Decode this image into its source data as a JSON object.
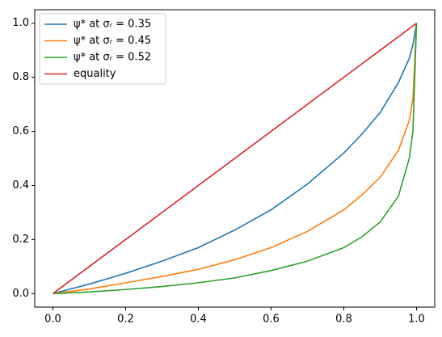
{
  "chart_data": {
    "type": "line",
    "x": [
      0,
      0.1,
      0.2,
      0.3,
      0.4,
      0.5,
      0.6,
      0.7,
      0.8,
      0.85,
      0.9,
      0.95,
      0.98,
      0.99,
      1.0
    ],
    "series": [
      {
        "name": "ψ* at σᵣ = 0.35",
        "color": "#1f77b4",
        "values": [
          0,
          0.035,
          0.075,
          0.12,
          0.17,
          0.235,
          0.31,
          0.405,
          0.52,
          0.59,
          0.67,
          0.78,
          0.87,
          0.92,
          1.0
        ]
      },
      {
        "name": "ψ* at σᵣ = 0.45",
        "color": "#ff7f0e",
        "values": [
          0,
          0.017,
          0.04,
          0.063,
          0.09,
          0.125,
          0.17,
          0.23,
          0.31,
          0.365,
          0.43,
          0.53,
          0.64,
          0.72,
          1.0
        ]
      },
      {
        "name": "ψ* at σᵣ = 0.52",
        "color": "#2ca02c",
        "values": [
          0,
          0.006,
          0.015,
          0.026,
          0.04,
          0.058,
          0.085,
          0.12,
          0.17,
          0.21,
          0.265,
          0.36,
          0.5,
          0.6,
          1.0
        ]
      },
      {
        "name": "equality",
        "color": "#d62728",
        "values": [
          0,
          0.1,
          0.2,
          0.3,
          0.4,
          0.5,
          0.6,
          0.7,
          0.8,
          0.85,
          0.9,
          0.95,
          0.98,
          0.99,
          1.0
        ]
      }
    ],
    "xlim": [
      -0.05,
      1.05
    ],
    "ylim": [
      -0.05,
      1.05
    ],
    "xticks": [
      {
        "value": 0,
        "label": "0.0"
      },
      0.2,
      0.4,
      0.6,
      0.8,
      {
        "value": 1,
        "label": "1.0"
      }
    ],
    "yticks": [
      {
        "value": 0,
        "label": "0.0"
      },
      0.2,
      0.4,
      0.6,
      0.8,
      {
        "value": 1,
        "label": "1.0"
      }
    ],
    "legend": "upper left"
  }
}
